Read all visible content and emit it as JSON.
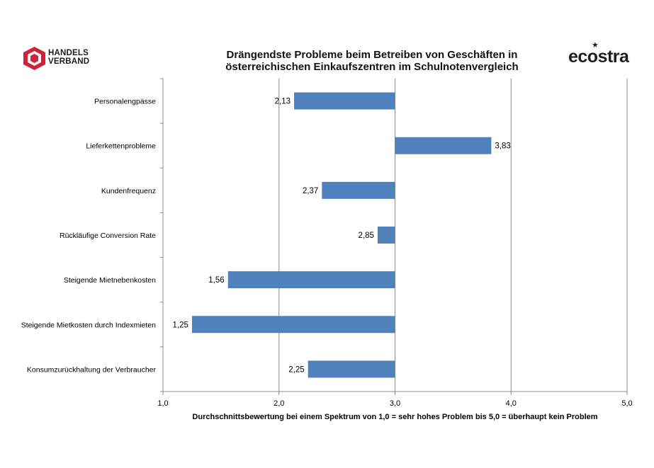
{
  "logos": {
    "left_text_line1": "HANDELS",
    "left_text_line2": "VERBAND",
    "right_text": "ecostra",
    "left_color": "#d0223a"
  },
  "chart_data": {
    "type": "bar",
    "orientation": "horizontal",
    "title_line1": "Drängendste Probleme beim Betreiben von Geschäften in",
    "title_line2": "österreichischen Einkaufszentren im Schulnotenvergleich",
    "xlabel": "Durchschnittsbewertung bei einem Spektrum von 1,0 = sehr hohes Problem bis 5,0 = überhaupt kein Problem",
    "ylabel": "",
    "xlim": [
      1,
      5
    ],
    "baseline": 3,
    "grid": true,
    "bar_color": "#4f81bd",
    "ticks": [
      "1,0",
      "2,0",
      "3,0",
      "4,0",
      "5,0"
    ],
    "categories": [
      "Personalengpässe",
      "Lieferkettenprobleme",
      "Kundenfrequenz",
      "Rückläufige Conversion Rate",
      "Steigende Mietnebenkosten",
      "Steigende Mietkosten durch Indexmieten",
      "Konsumzurückhaltung der Verbraucher"
    ],
    "values": [
      2.13,
      3.83,
      2.37,
      2.85,
      1.56,
      1.25,
      2.25
    ],
    "value_labels": [
      "2,13",
      "3,83",
      "2,37",
      "2,85",
      "1,56",
      "1,25",
      "2,25"
    ]
  }
}
